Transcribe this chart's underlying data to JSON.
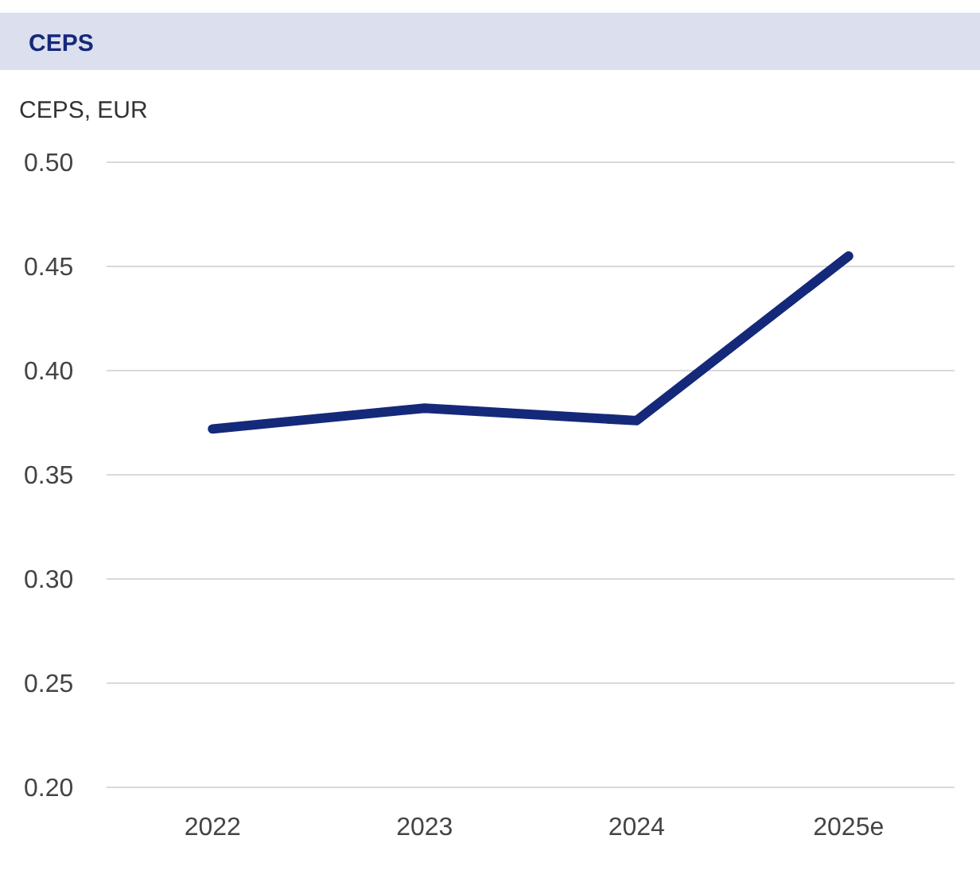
{
  "chart_data": {
    "type": "line",
    "title": "CEPS",
    "ylabel": "CEPS, EUR",
    "categories": [
      "2022",
      "2023",
      "2024",
      "2025e"
    ],
    "series": [
      {
        "color": "#15297a",
        "values": [
          0.372,
          0.382,
          0.376,
          0.455
        ]
      }
    ],
    "ylim": [
      0.2,
      0.5
    ],
    "yticks": [
      {
        "value": 0.2,
        "label": "0.20"
      },
      {
        "value": 0.25,
        "label": "0.25"
      },
      {
        "value": 0.3,
        "label": "0.30"
      },
      {
        "value": 0.35,
        "label": "0.35"
      },
      {
        "value": 0.4,
        "label": "0.40"
      },
      {
        "value": 0.45,
        "label": "0.45"
      },
      {
        "value": 0.5,
        "label": "0.50"
      }
    ],
    "grid": "y",
    "marker": "none",
    "line_style": "solid"
  }
}
